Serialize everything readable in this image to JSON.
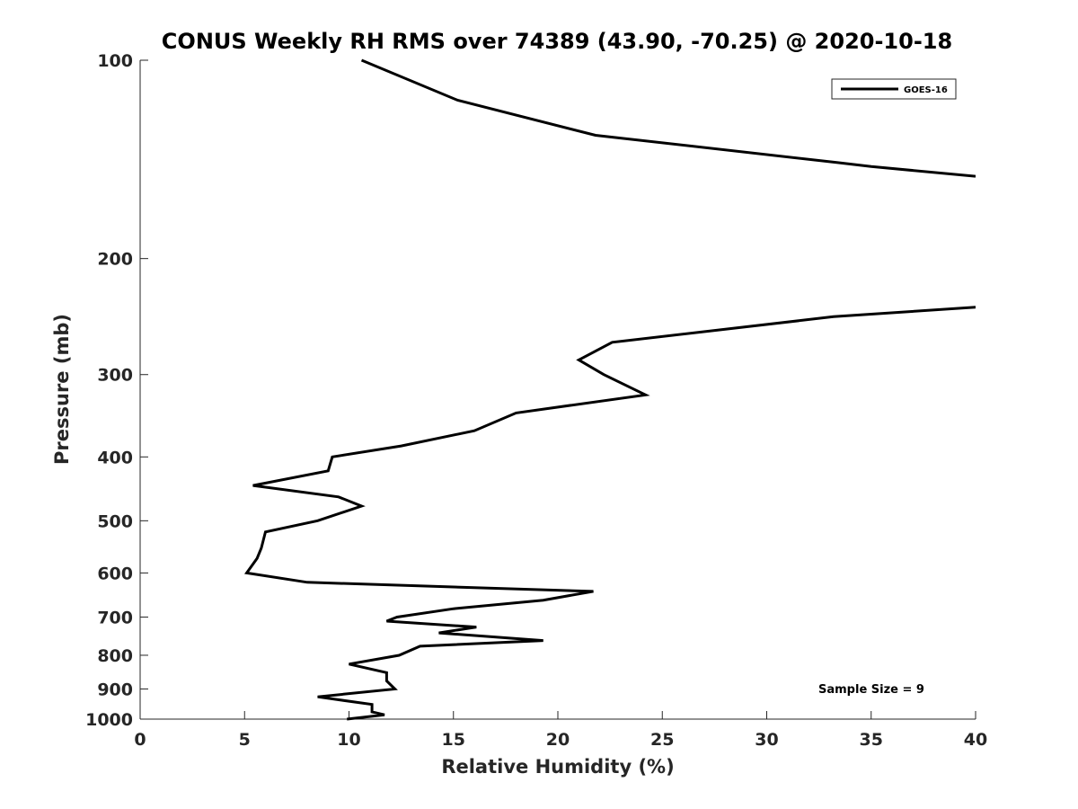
{
  "chart_data": {
    "type": "line",
    "title": "CONUS Weekly RH RMS over 74389 (43.90, -70.25) @ 2020-10-18",
    "xlabel": "Relative Humidity (%)",
    "ylabel": "Pressure (mb)",
    "xlim": [
      0,
      40
    ],
    "ylim": [
      1000,
      100
    ],
    "yscale": "log",
    "y_reversed": true,
    "xticks": [
      0,
      5,
      10,
      15,
      20,
      25,
      30,
      35,
      40
    ],
    "yticks": [
      100,
      200,
      300,
      400,
      500,
      600,
      700,
      800,
      900,
      1000
    ],
    "grid": false,
    "legend": "top-right",
    "series": [
      {
        "name": "GOES-16",
        "color": "#000000",
        "segments": [
          {
            "x": [
              10.6,
              15.2,
              21.8,
              33.4,
              35.0,
              40.0
            ],
            "y": [
              100,
              115,
              130,
              143,
              145,
              150
            ]
          },
          {
            "x": [
              40.0,
              33.2,
              22.6,
              21.0,
              22.2,
              24.2,
              18.0,
              16.0,
              12.5,
              9.2,
              9.0,
              5.4,
              9.5,
              10.6,
              8.5,
              6.0,
              5.8,
              5.6,
              5.1,
              8.0,
              21.7,
              19.3,
              15.0,
              12.3,
              11.8,
              16.1,
              14.3,
              19.3,
              13.4,
              12.4,
              10.0,
              11.8,
              11.8,
              12.2,
              8.5,
              11.1,
              11.1,
              11.7,
              9.9
            ],
            "y": [
              237,
              245,
              268,
              285,
              300,
              322,
              343,
              365,
              385,
              400,
              420,
              442,
              460,
              475,
              500,
              520,
              550,
              570,
              600,
              620,
              640,
              660,
              680,
              700,
              710,
              725,
              740,
              760,
              775,
              800,
              825,
              850,
              875,
              900,
              925,
              950,
              975,
              985,
              1000
            ]
          }
        ]
      }
    ],
    "annotation": "Sample Size = 9"
  }
}
